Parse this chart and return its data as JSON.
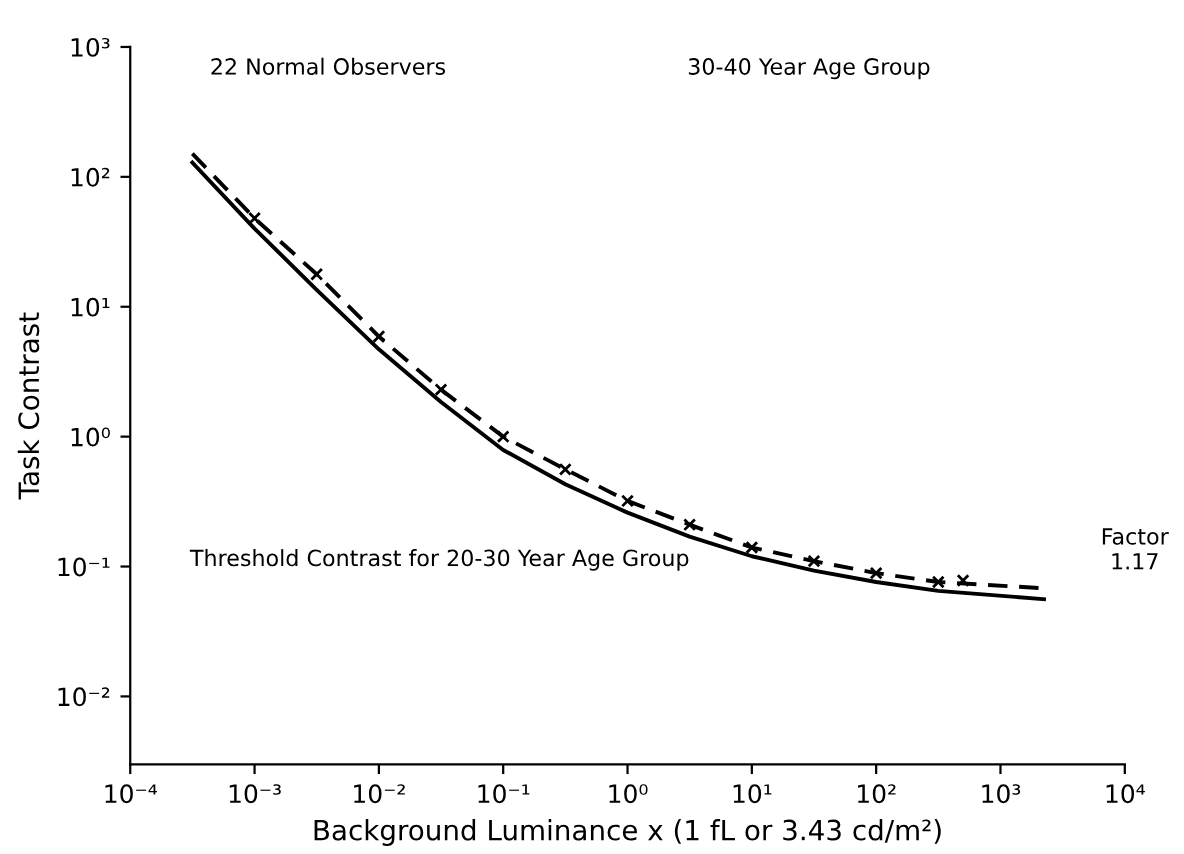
{
  "chart_data": {
    "type": "line",
    "xlabel": "Background Luminance x (1 fL or 3.43 cd/m²)",
    "ylabel": "Task Contrast",
    "log": "xy",
    "xlim": [
      0.0001,
      10000
    ],
    "ylim": [
      0.003,
      1000
    ],
    "xticks": [
      {
        "value": 0.0001,
        "label": "10⁻⁴"
      },
      {
        "value": 0.001,
        "label": "10⁻³"
      },
      {
        "value": 0.01,
        "label": "10⁻²"
      },
      {
        "value": 0.1,
        "label": "10⁻¹"
      },
      {
        "value": 1,
        "label": "10⁰"
      },
      {
        "value": 10,
        "label": "10¹"
      },
      {
        "value": 100,
        "label": "10²"
      },
      {
        "value": 1000,
        "label": "10³"
      },
      {
        "value": 10000,
        "label": "10⁴"
      }
    ],
    "yticks": [
      {
        "value": 0.01,
        "label": "10⁻²"
      },
      {
        "value": 0.1,
        "label": "10⁻¹"
      },
      {
        "value": 1,
        "label": "10⁰"
      },
      {
        "value": 10,
        "label": "10¹"
      },
      {
        "value": 100,
        "label": "10²"
      },
      {
        "value": 1000,
        "label": "10³"
      }
    ],
    "grid": false,
    "legend": false,
    "series": [
      {
        "color": "#000000",
        "line_style": "solid",
        "marker": "none",
        "x": [
          0.000316,
          0.001,
          0.00316,
          0.01,
          0.0316,
          0.1,
          0.316,
          1,
          3.16,
          10,
          31.6,
          100,
          316,
          2239
        ],
        "values": [
          129,
          40,
          13.5,
          4.7,
          1.85,
          0.79,
          0.43,
          0.26,
          0.17,
          0.12,
          0.093,
          0.076,
          0.065,
          0.056
        ]
      },
      {
        "color": "#000000",
        "line_style": "dashed",
        "marker": "none",
        "x": [
          0.000316,
          0.001,
          0.00316,
          0.01,
          0.0316,
          0.1,
          0.316,
          1,
          3.16,
          10,
          31.6,
          100,
          316,
          2239
        ],
        "values": [
          151,
          48,
          17.8,
          5.9,
          2.3,
          1.0,
          0.56,
          0.32,
          0.21,
          0.14,
          0.11,
          0.089,
          0.076,
          0.068
        ]
      },
      {
        "type": "scatter",
        "color": "#000000",
        "marker": "cross",
        "x": [
          0.001,
          0.00316,
          0.01,
          0.0316,
          0.1,
          0.316,
          1,
          3.16,
          10,
          31.6,
          100,
          316,
          500
        ],
        "values": [
          48,
          17.8,
          5.9,
          2.3,
          1.0,
          0.56,
          0.32,
          0.21,
          0.14,
          0.11,
          0.089,
          0.076,
          0.078
        ]
      }
    ],
    "annotations": [
      "22 Normal Observers",
      "30-40 Year Age Group",
      "Threshold Contrast for 20-30 Year Age Group",
      "Factor\n1.17"
    ]
  }
}
